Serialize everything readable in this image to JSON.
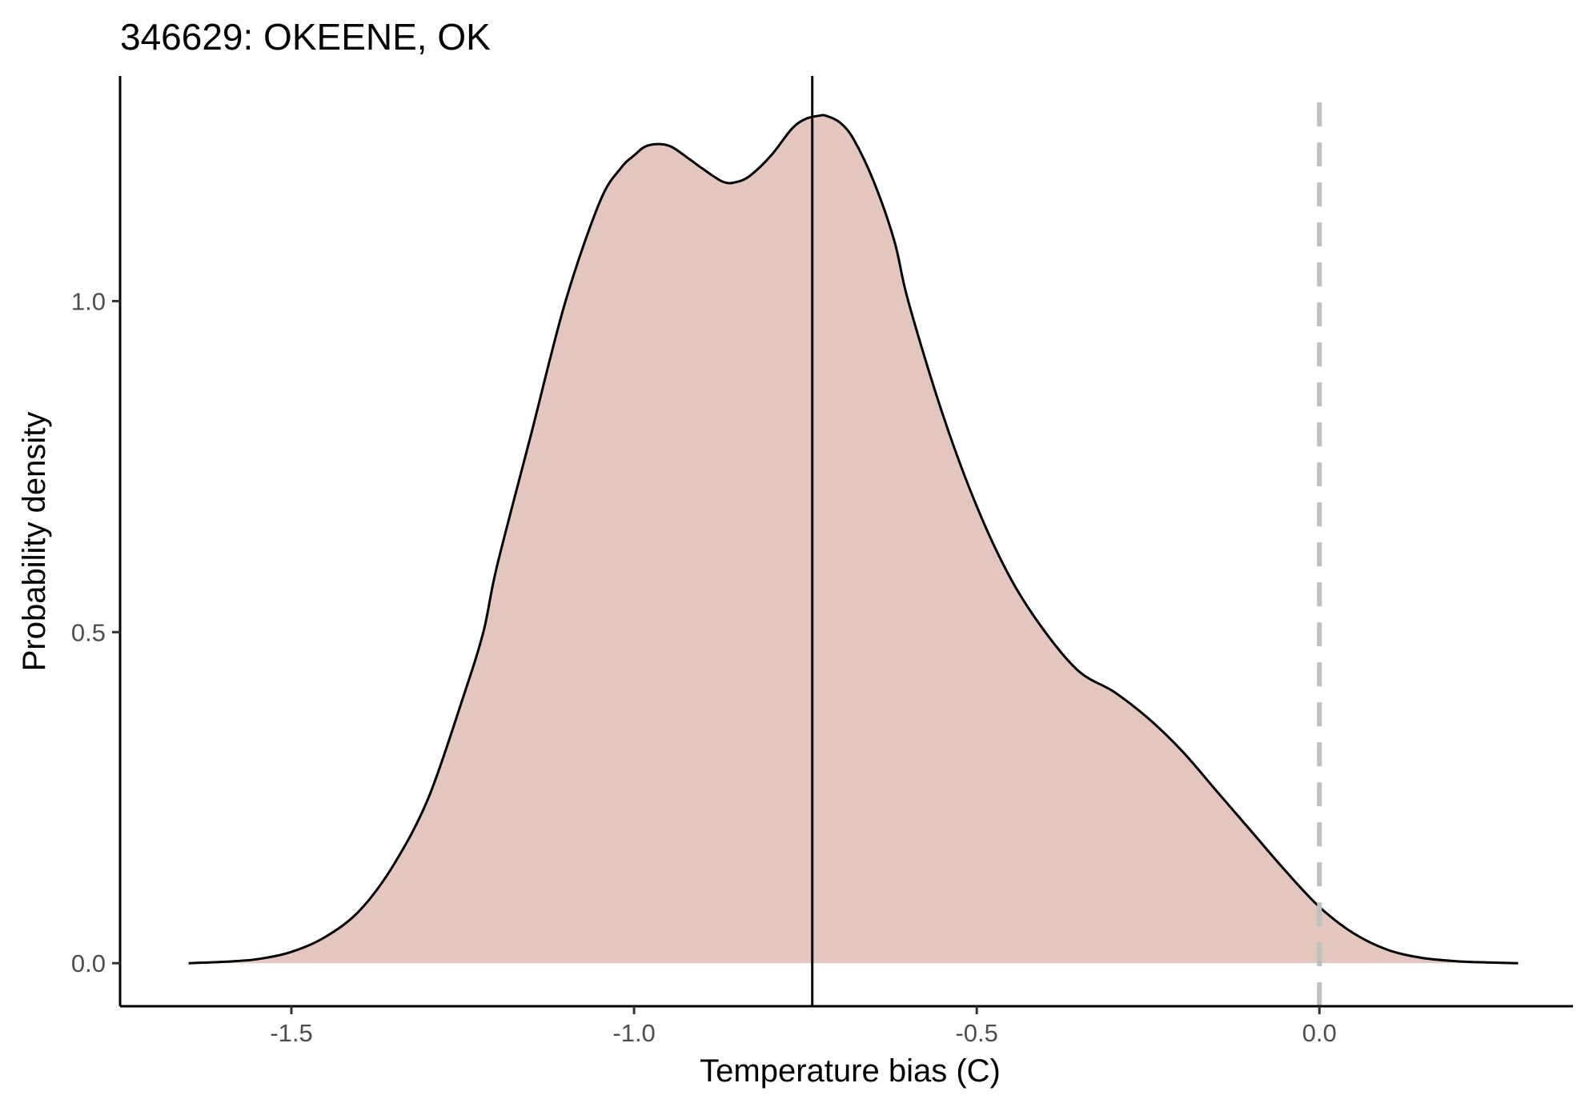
{
  "chart_data": {
    "type": "area",
    "title": "346629: OKEENE, OK",
    "xlabel": "Temperature bias (C)",
    "ylabel": "Probability density",
    "xlim": [
      -1.75,
      0.37
    ],
    "ylim": [
      -0.065,
      1.34
    ],
    "x_ticks": [
      -1.5,
      -1.0,
      -0.5,
      0.0
    ],
    "x_tick_labels": [
      "-1.5",
      "-1.0",
      "-0.5",
      "0.0"
    ],
    "y_ticks": [
      0.0,
      0.5,
      1.0
    ],
    "y_tick_labels": [
      "0.0",
      "0.5",
      "1.0"
    ],
    "grid": false,
    "fill_color": "#e3c7be",
    "line_color": "#000000",
    "mean_line": {
      "x": -0.74,
      "color": "#000000",
      "style": "solid"
    },
    "zero_line": {
      "x": 0.0,
      "color": "#bfbfbf",
      "style": "dashed"
    },
    "series": [
      {
        "x": [
          -1.65,
          -1.6,
          -1.55,
          -1.5,
          -1.45,
          -1.4,
          -1.35,
          -1.3,
          -1.25,
          -1.22,
          -1.2,
          -1.15,
          -1.1,
          -1.05,
          -1.02,
          -1.0,
          -0.98,
          -0.95,
          -0.92,
          -0.9,
          -0.87,
          -0.85,
          -0.83,
          -0.8,
          -0.77,
          -0.75,
          -0.73,
          -0.72,
          -0.7,
          -0.68,
          -0.65,
          -0.62,
          -0.6,
          -0.55,
          -0.5,
          -0.45,
          -0.4,
          -0.35,
          -0.3,
          -0.25,
          -0.2,
          -0.15,
          -0.1,
          -0.05,
          0.0,
          0.05,
          0.1,
          0.15,
          0.2,
          0.25,
          0.29
        ],
        "y": [
          0.0,
          0.002,
          0.006,
          0.017,
          0.04,
          0.08,
          0.15,
          0.25,
          0.4,
          0.5,
          0.6,
          0.8,
          1.0,
          1.15,
          1.2,
          1.22,
          1.235,
          1.235,
          1.215,
          1.2,
          1.18,
          1.18,
          1.19,
          1.22,
          1.26,
          1.275,
          1.28,
          1.28,
          1.27,
          1.245,
          1.18,
          1.09,
          1.0,
          0.83,
          0.69,
          0.58,
          0.5,
          0.44,
          0.41,
          0.37,
          0.32,
          0.26,
          0.2,
          0.14,
          0.085,
          0.045,
          0.02,
          0.008,
          0.003,
          0.001,
          0.0
        ]
      }
    ]
  }
}
